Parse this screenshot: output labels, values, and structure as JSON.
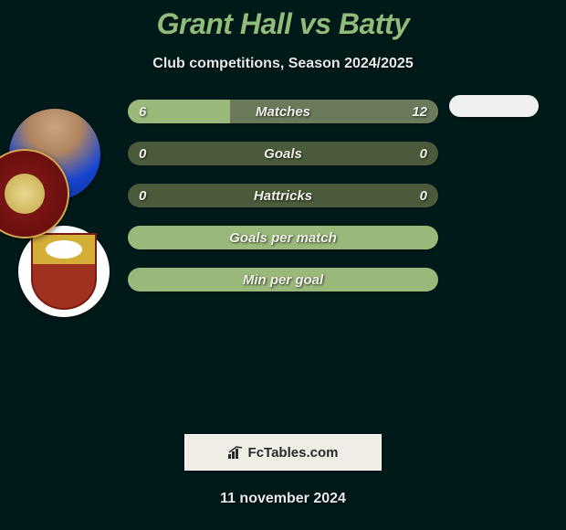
{
  "header": {
    "title": "Grant Hall vs Batty",
    "subtitle": "Club competitions, Season 2024/2025"
  },
  "comparison": {
    "bars": [
      {
        "label": "Matches",
        "left": "6",
        "right": "12",
        "left_pct": 33,
        "right_pct": 67,
        "mode": "split"
      },
      {
        "label": "Goals",
        "left": "0",
        "right": "0",
        "left_pct": 0,
        "right_pct": 0,
        "mode": "empty"
      },
      {
        "label": "Hattricks",
        "left": "0",
        "right": "0",
        "left_pct": 0,
        "right_pct": 0,
        "mode": "empty"
      },
      {
        "label": "Goals per match",
        "left": "",
        "right": "",
        "left_pct": 100,
        "right_pct": 0,
        "mode": "full"
      },
      {
        "label": "Min per goal",
        "left": "",
        "right": "",
        "left_pct": 100,
        "right_pct": 0,
        "mode": "full"
      }
    ]
  },
  "watermark": {
    "text": "FcTables.com"
  },
  "footer": {
    "date": "11 november 2024"
  },
  "colors": {
    "bg": "#001a1a",
    "accent": "#8fbc7a",
    "bar_light": "#9ab87a",
    "bar_dark": "#4a5a3a",
    "bar_right": "#6a7a5a"
  }
}
